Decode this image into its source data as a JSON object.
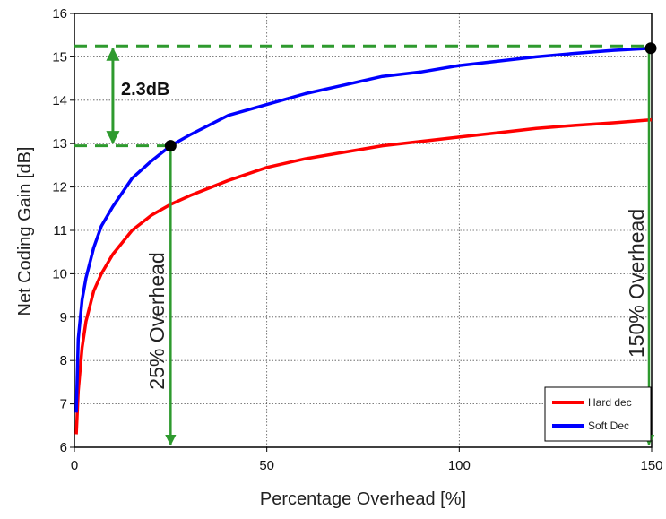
{
  "chart_data": {
    "type": "line",
    "title": "",
    "xlabel": "Percentage Overhead [%]",
    "ylabel": "Net Coding Gain [dB]",
    "xlim": [
      0,
      150
    ],
    "ylim": [
      6,
      16
    ],
    "x_ticks": [
      "0",
      "50",
      "100",
      "150"
    ],
    "y_ticks": [
      "6",
      "7",
      "8",
      "9",
      "10",
      "11",
      "12",
      "13",
      "14",
      "15",
      "16"
    ],
    "grid": true,
    "legend_position": "bottom-right",
    "series": [
      {
        "name": "Hard dec",
        "color": "#ff0000",
        "x": [
          0.5,
          1,
          2,
          3,
          5,
          7,
          10,
          15,
          20,
          25,
          30,
          40,
          50,
          60,
          70,
          80,
          90,
          100,
          110,
          120,
          130,
          140,
          150
        ],
        "y": [
          6.3,
          7.3,
          8.3,
          8.9,
          9.6,
          10.0,
          10.45,
          11.0,
          11.35,
          11.6,
          11.8,
          12.15,
          12.45,
          12.65,
          12.8,
          12.95,
          13.05,
          13.15,
          13.25,
          13.35,
          13.42,
          13.48,
          13.55
        ]
      },
      {
        "name": "Soft Dec",
        "color": "#0000ff",
        "x": [
          0.5,
          1,
          2,
          3,
          5,
          7,
          10,
          15,
          20,
          25,
          30,
          40,
          50,
          60,
          70,
          80,
          90,
          100,
          110,
          120,
          130,
          140,
          150
        ],
        "y": [
          6.8,
          8.5,
          9.4,
          9.9,
          10.6,
          11.1,
          11.55,
          12.2,
          12.6,
          12.95,
          13.2,
          13.65,
          13.9,
          14.15,
          14.35,
          14.55,
          14.65,
          14.8,
          14.9,
          15.0,
          15.08,
          15.15,
          15.2
        ]
      }
    ],
    "annotations": {
      "gain_text": "2.3dB",
      "overhead_25_text": "25% Overhead",
      "overhead_150_text": "150% Overhead",
      "points": [
        {
          "x": 25,
          "y": 12.95
        },
        {
          "x": 150,
          "y": 15.2
        }
      ],
      "hlines": [
        15.25,
        12.95
      ],
      "arrow_x": 10,
      "vlines": [
        25,
        150
      ]
    },
    "annotation_color": "#2e9a2e"
  }
}
